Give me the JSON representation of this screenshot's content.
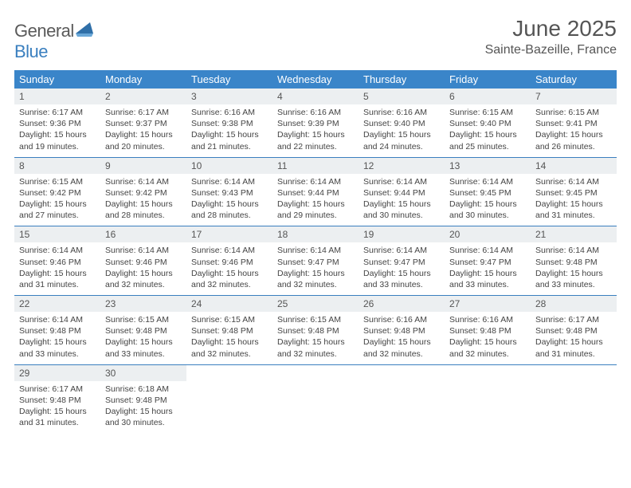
{
  "brand": {
    "part1": "General",
    "part2": "Blue"
  },
  "title": "June 2025",
  "location": "Sainte-Bazeille, France",
  "colors": {
    "header_bg": "#3a85c9",
    "header_text": "#ffffff",
    "daynum_bg": "#eceff1",
    "rule": "#3a7fbf",
    "text": "#444444",
    "brand_gray": "#5a5a5a",
    "brand_blue": "#3a7fbf"
  },
  "fonts": {
    "title_size_pt": 21,
    "header_size_pt": 10,
    "body_size_pt": 8
  },
  "weekdays": [
    "Sunday",
    "Monday",
    "Tuesday",
    "Wednesday",
    "Thursday",
    "Friday",
    "Saturday"
  ],
  "weeks": [
    [
      {
        "d": "1",
        "sr": "6:17 AM",
        "ss": "9:36 PM",
        "dl": "15 hours and 19 minutes."
      },
      {
        "d": "2",
        "sr": "6:17 AM",
        "ss": "9:37 PM",
        "dl": "15 hours and 20 minutes."
      },
      {
        "d": "3",
        "sr": "6:16 AM",
        "ss": "9:38 PM",
        "dl": "15 hours and 21 minutes."
      },
      {
        "d": "4",
        "sr": "6:16 AM",
        "ss": "9:39 PM",
        "dl": "15 hours and 22 minutes."
      },
      {
        "d": "5",
        "sr": "6:16 AM",
        "ss": "9:40 PM",
        "dl": "15 hours and 24 minutes."
      },
      {
        "d": "6",
        "sr": "6:15 AM",
        "ss": "9:40 PM",
        "dl": "15 hours and 25 minutes."
      },
      {
        "d": "7",
        "sr": "6:15 AM",
        "ss": "9:41 PM",
        "dl": "15 hours and 26 minutes."
      }
    ],
    [
      {
        "d": "8",
        "sr": "6:15 AM",
        "ss": "9:42 PM",
        "dl": "15 hours and 27 minutes."
      },
      {
        "d": "9",
        "sr": "6:14 AM",
        "ss": "9:42 PM",
        "dl": "15 hours and 28 minutes."
      },
      {
        "d": "10",
        "sr": "6:14 AM",
        "ss": "9:43 PM",
        "dl": "15 hours and 28 minutes."
      },
      {
        "d": "11",
        "sr": "6:14 AM",
        "ss": "9:44 PM",
        "dl": "15 hours and 29 minutes."
      },
      {
        "d": "12",
        "sr": "6:14 AM",
        "ss": "9:44 PM",
        "dl": "15 hours and 30 minutes."
      },
      {
        "d": "13",
        "sr": "6:14 AM",
        "ss": "9:45 PM",
        "dl": "15 hours and 30 minutes."
      },
      {
        "d": "14",
        "sr": "6:14 AM",
        "ss": "9:45 PM",
        "dl": "15 hours and 31 minutes."
      }
    ],
    [
      {
        "d": "15",
        "sr": "6:14 AM",
        "ss": "9:46 PM",
        "dl": "15 hours and 31 minutes."
      },
      {
        "d": "16",
        "sr": "6:14 AM",
        "ss": "9:46 PM",
        "dl": "15 hours and 32 minutes."
      },
      {
        "d": "17",
        "sr": "6:14 AM",
        "ss": "9:46 PM",
        "dl": "15 hours and 32 minutes."
      },
      {
        "d": "18",
        "sr": "6:14 AM",
        "ss": "9:47 PM",
        "dl": "15 hours and 32 minutes."
      },
      {
        "d": "19",
        "sr": "6:14 AM",
        "ss": "9:47 PM",
        "dl": "15 hours and 33 minutes."
      },
      {
        "d": "20",
        "sr": "6:14 AM",
        "ss": "9:47 PM",
        "dl": "15 hours and 33 minutes."
      },
      {
        "d": "21",
        "sr": "6:14 AM",
        "ss": "9:48 PM",
        "dl": "15 hours and 33 minutes."
      }
    ],
    [
      {
        "d": "22",
        "sr": "6:14 AM",
        "ss": "9:48 PM",
        "dl": "15 hours and 33 minutes."
      },
      {
        "d": "23",
        "sr": "6:15 AM",
        "ss": "9:48 PM",
        "dl": "15 hours and 33 minutes."
      },
      {
        "d": "24",
        "sr": "6:15 AM",
        "ss": "9:48 PM",
        "dl": "15 hours and 32 minutes."
      },
      {
        "d": "25",
        "sr": "6:15 AM",
        "ss": "9:48 PM",
        "dl": "15 hours and 32 minutes."
      },
      {
        "d": "26",
        "sr": "6:16 AM",
        "ss": "9:48 PM",
        "dl": "15 hours and 32 minutes."
      },
      {
        "d": "27",
        "sr": "6:16 AM",
        "ss": "9:48 PM",
        "dl": "15 hours and 32 minutes."
      },
      {
        "d": "28",
        "sr": "6:17 AM",
        "ss": "9:48 PM",
        "dl": "15 hours and 31 minutes."
      }
    ],
    [
      {
        "d": "29",
        "sr": "6:17 AM",
        "ss": "9:48 PM",
        "dl": "15 hours and 31 minutes."
      },
      {
        "d": "30",
        "sr": "6:18 AM",
        "ss": "9:48 PM",
        "dl": "15 hours and 30 minutes."
      },
      null,
      null,
      null,
      null,
      null
    ]
  ],
  "labels": {
    "sunrise": "Sunrise: ",
    "sunset": "Sunset: ",
    "daylight": "Daylight: "
  }
}
